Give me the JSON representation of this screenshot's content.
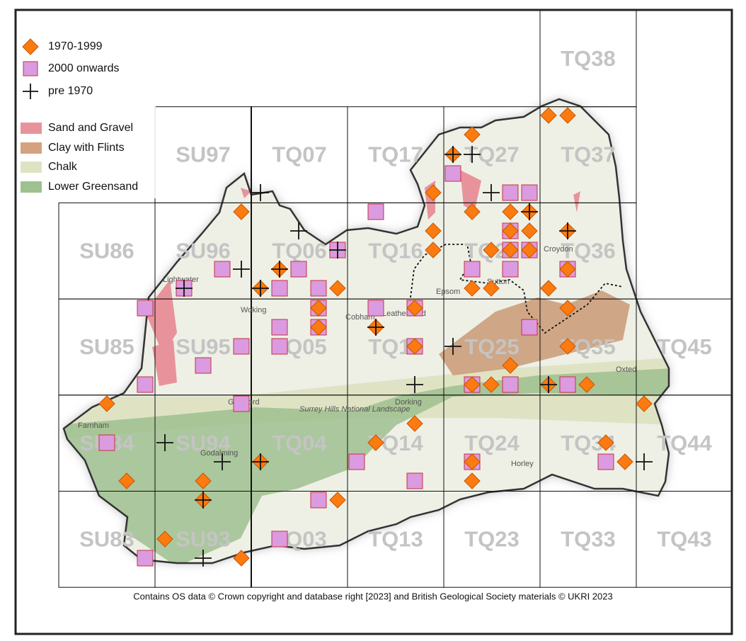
{
  "legend": {
    "records": [
      "1970-1999",
      "2000 onwards",
      "pre 1970"
    ],
    "geology": [
      "Sand and Gravel",
      "Clay with Flints",
      "Chalk",
      "Lower Greensand"
    ]
  },
  "grid": {
    "rows": [
      [
        "TQ38"
      ],
      [
        "SU97",
        "TQ07",
        "TQ17",
        "TQ27",
        "TQ37"
      ],
      [
        "SU86",
        "SU96",
        "TQ06",
        "TQ16",
        "TQ26",
        "TQ36"
      ],
      [
        "SU85",
        "SU95",
        "TQ05",
        "TQ15",
        "TQ25",
        "TQ35",
        "TQ45"
      ],
      [
        "SU84",
        "SU94",
        "TQ04",
        "TQ14",
        "TQ24",
        "TQ34",
        "TQ44"
      ],
      [
        "SU83",
        "SU93",
        "TQ03",
        "TQ13",
        "TQ23",
        "TQ33",
        "TQ43"
      ]
    ]
  },
  "places": [
    "Lightwater",
    "Woking",
    "Cobham",
    "Leatherhead",
    "Epsom",
    "Sutton",
    "Croydon",
    "Dorking",
    "Guildford",
    "Godalming",
    "Farnham",
    "Horley",
    "Oxted",
    "Surrey Hills National Landscape"
  ],
  "attribution": "Contains OS data  © Crown copyright and database right [2023] and British Geological Society materials © UKRI 2023"
}
